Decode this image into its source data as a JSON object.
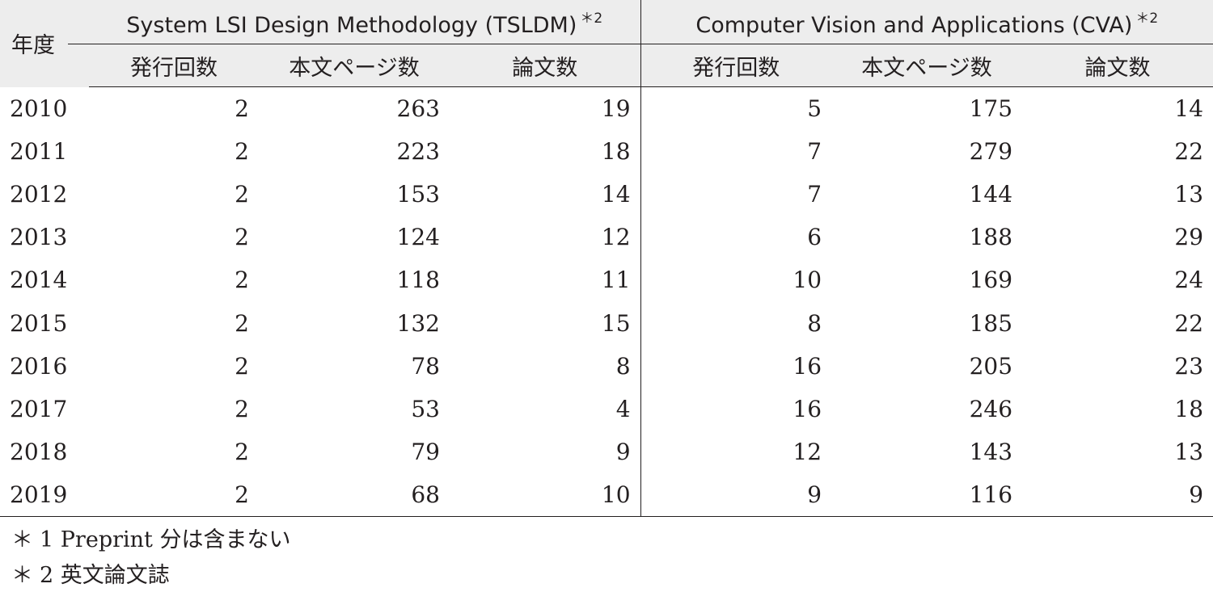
{
  "table": {
    "year_header": "年度",
    "groups": [
      {
        "label": "System LSI Design Methodology (TSLDM)",
        "sup": "＊2"
      },
      {
        "label": "Computer Vision and Applications (CVA)",
        "sup": "＊2"
      }
    ],
    "subheaders": [
      "発行回数",
      "本文ページ数",
      "論文数",
      "発行回数",
      "本文ページ数",
      "論文数"
    ],
    "rows": [
      [
        "2010",
        "2",
        "263",
        "19",
        "5",
        "175",
        "14"
      ],
      [
        "2011",
        "2",
        "223",
        "18",
        "7",
        "279",
        "22"
      ],
      [
        "2012",
        "2",
        "153",
        "14",
        "7",
        "144",
        "13"
      ],
      [
        "2013",
        "2",
        "124",
        "12",
        "6",
        "188",
        "29"
      ],
      [
        "2014",
        "2",
        "118",
        "11",
        "10",
        "169",
        "24"
      ],
      [
        "2015",
        "2",
        "132",
        "15",
        "8",
        "185",
        "22"
      ],
      [
        "2016",
        "2",
        "78",
        "8",
        "16",
        "205",
        "23"
      ],
      [
        "2017",
        "2",
        "53",
        "4",
        "16",
        "246",
        "18"
      ],
      [
        "2018",
        "2",
        "79",
        "9",
        "12",
        "143",
        "13"
      ],
      [
        "2019",
        "2",
        "68",
        "10",
        "9",
        "116",
        "9"
      ]
    ]
  },
  "notes": [
    {
      "mark": "＊",
      "text": "1 Preprint 分は含まない"
    },
    {
      "mark": "＊",
      "text": "2 英文論文誌"
    }
  ]
}
